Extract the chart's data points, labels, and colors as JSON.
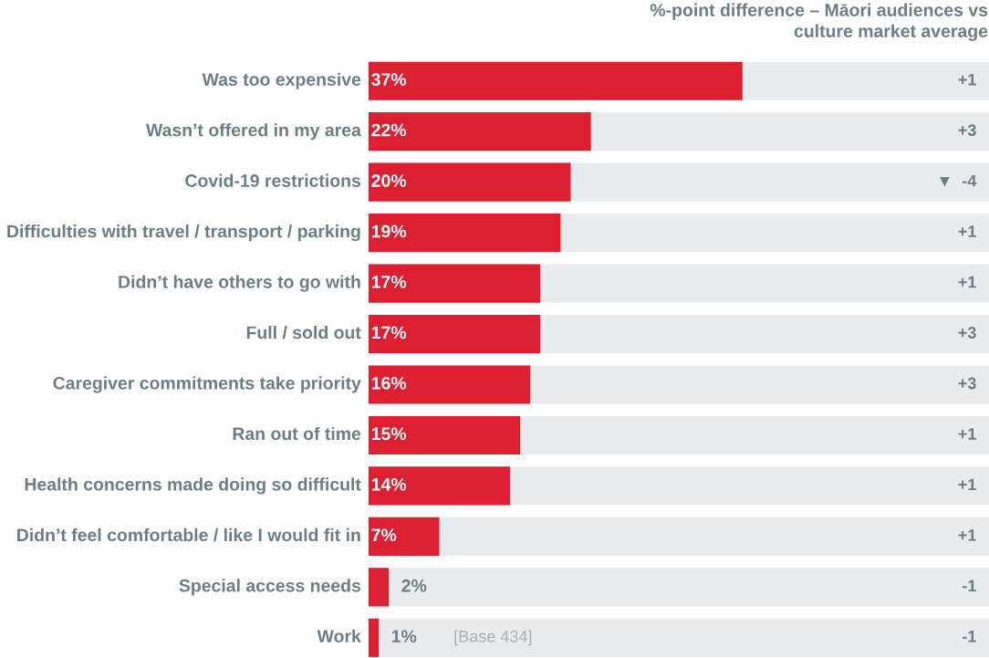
{
  "chart_data": {
    "type": "bar",
    "orientation": "horizontal",
    "title": "%-point difference – Māori audiences vs\nculture market average",
    "categories": [
      "Was too expensive",
      "Wasn’t offered in my area",
      "Covid-19 restrictions",
      "Difficulties with travel / transport / parking",
      "Didn’t have others to go with",
      "Full / sold out",
      "Caregiver commitments take priority",
      "Ran out of time",
      "Health concerns made doing so difficult",
      "Didn’t feel comfortable / like I would fit in",
      "Special access needs",
      "Work"
    ],
    "values": [
      37,
      22,
      20,
      19,
      17,
      17,
      16,
      15,
      14,
      7,
      2,
      1
    ],
    "value_labels": [
      "37%",
      "22%",
      "20%",
      "19%",
      "17%",
      "17%",
      "16%",
      "15%",
      "14%",
      "7%",
      "2%",
      "1%"
    ],
    "color": "#dc2032",
    "xlim": [
      0,
      61.4
    ],
    "annotations": [
      "+1",
      "+3",
      "▼  -4",
      "+1",
      "+1",
      "+3",
      "+3",
      "+1",
      "+1",
      "+1",
      "-1",
      "-1",
      "[Base 434]"
    ]
  }
}
